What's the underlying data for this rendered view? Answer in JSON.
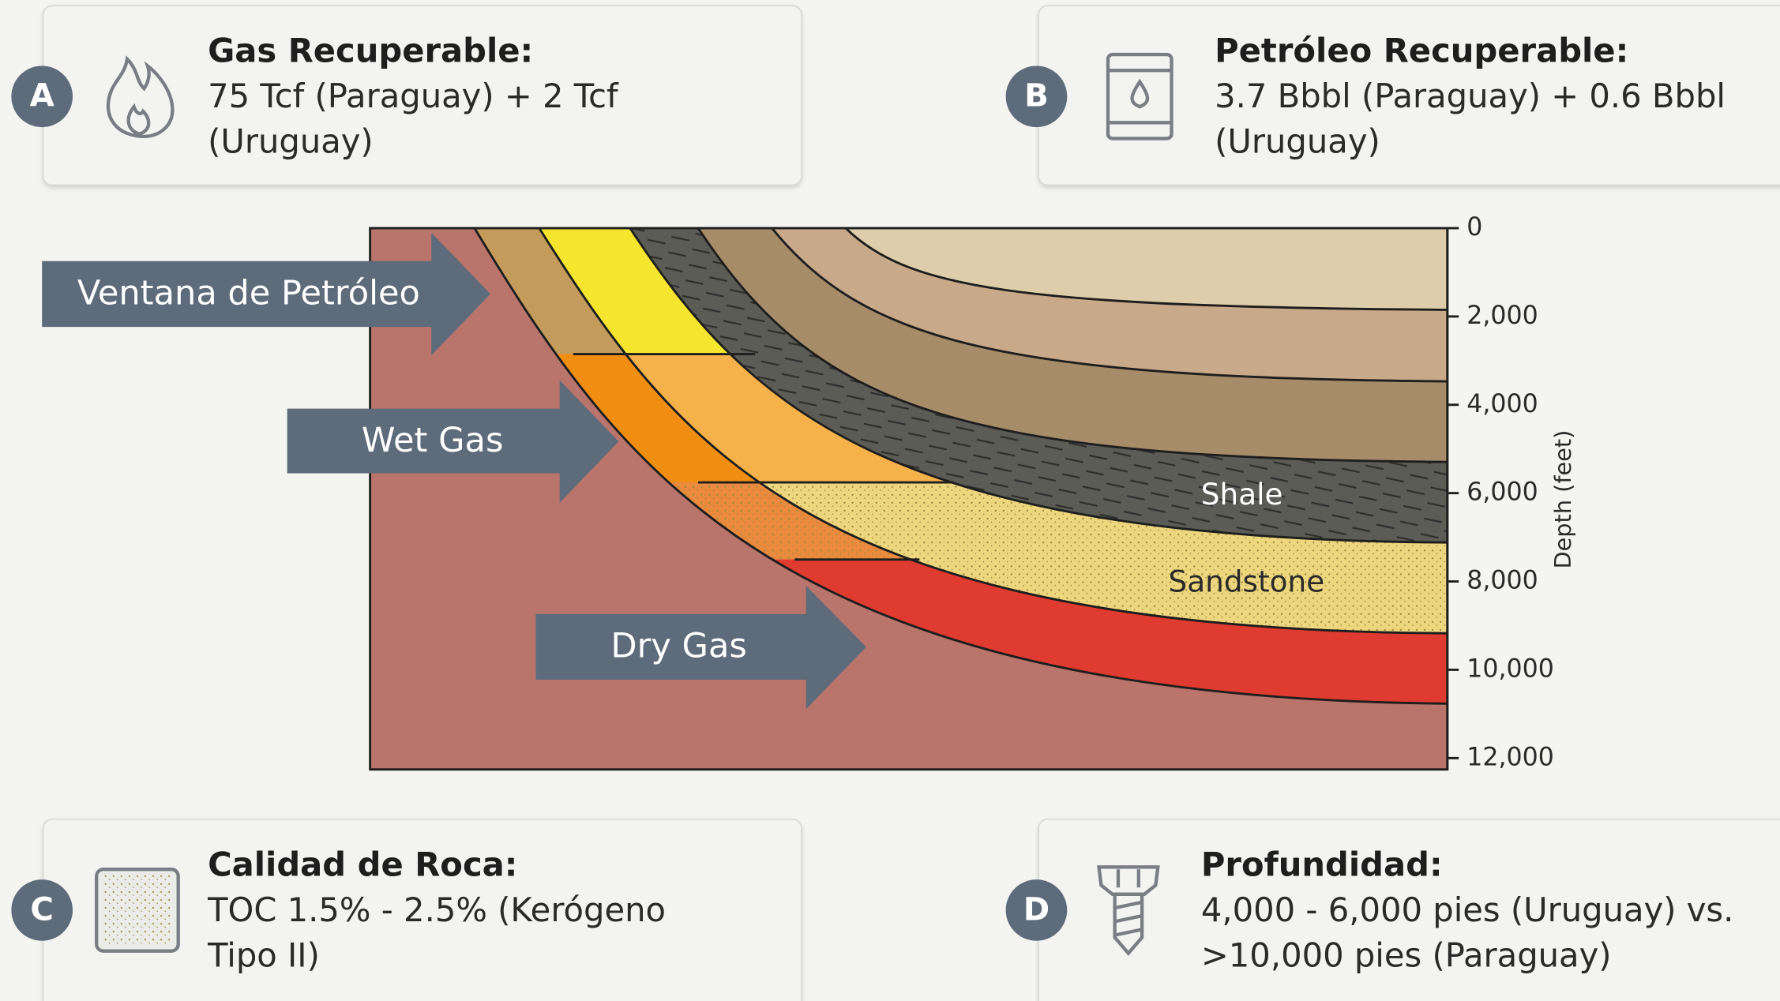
{
  "cards": [
    {
      "letter": "A",
      "title": "Gas Recuperable:",
      "lines": [
        "75 Tcf (Paraguay) + 2 Tcf",
        "(Uruguay)"
      ]
    },
    {
      "letter": "B",
      "title": "Petróleo Recuperable:",
      "lines": [
        "3.7 Bbbl (Paraguay) + 0.6 Bbbl",
        "(Uruguay)"
      ]
    },
    {
      "letter": "C",
      "title": "Calidad de Roca:",
      "lines": [
        "TOC 1.5% - 2.5% (Kerógeno",
        "Tipo II)"
      ]
    },
    {
      "letter": "D",
      "title": "Profundidad:",
      "lines": [
        "4,000 - 6,000 pies (Uruguay) vs.",
        ">10,000 pies (Paraguay)"
      ]
    }
  ],
  "diagram": {
    "arrows": [
      "Ventana de Petróleo",
      "Wet Gas",
      "Dry Gas"
    ],
    "layer_labels": [
      "Shale",
      "Sandstone"
    ],
    "axis_title": "Depth (feet)",
    "ticks": [
      "0",
      "2,000",
      "4,000",
      "6,000",
      "8,000",
      "10,000",
      "12,000"
    ]
  }
}
